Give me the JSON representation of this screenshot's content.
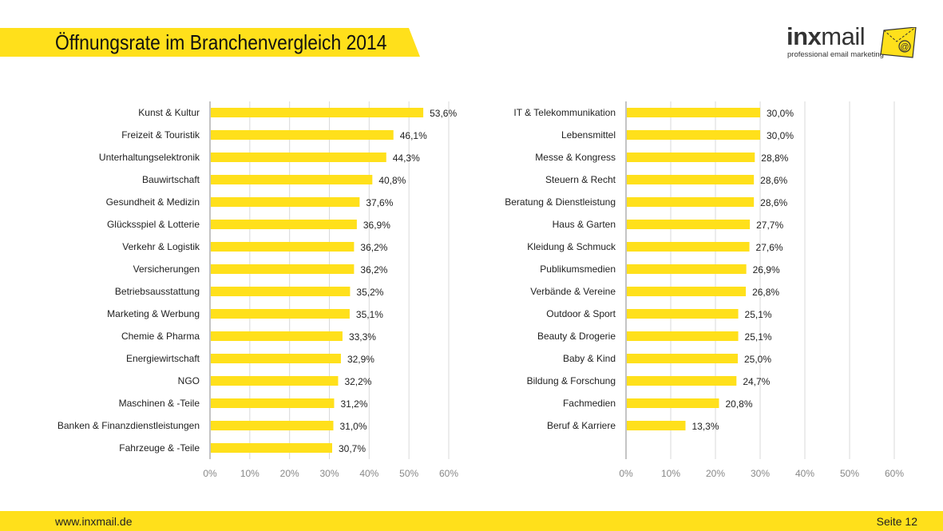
{
  "header": {
    "title": "Öffnungsrate im Branchenvergleich 2014",
    "logo_main_bold": "inx",
    "logo_main_rest": "mail",
    "logo_tagline": "professional email marketing"
  },
  "footer": {
    "url": "www.inxmail.de",
    "page": "Seite 12"
  },
  "colors": {
    "accent": "#FFE01B",
    "bar": "#FFE01B",
    "grid": "#D9D9D9",
    "axis": "#888888",
    "text": "#222222"
  },
  "chart_data": [
    {
      "type": "bar",
      "orientation": "horizontal",
      "categories": [
        "Kunst & Kultur",
        "Freizeit & Touristik",
        "Unterhaltungselektronik",
        "Bauwirtschaft",
        "Gesundheit & Medizin",
        "Glücksspiel & Lotterie",
        "Verkehr & Logistik",
        "Versicherungen",
        "Betriebsausstattung",
        "Marketing & Werbung",
        "Chemie & Pharma",
        "Energiewirtschaft",
        "NGO",
        "Maschinen & -Teile",
        "Banken & Finanzdienstleistungen",
        "Fahrzeuge & -Teile"
      ],
      "values": [
        53.6,
        46.1,
        44.3,
        40.8,
        37.6,
        36.9,
        36.2,
        36.2,
        35.2,
        35.1,
        33.3,
        32.9,
        32.2,
        31.2,
        31.0,
        30.7
      ],
      "value_labels": [
        "53,6%",
        "46,1%",
        "44,3%",
        "40,8%",
        "37,6%",
        "36,9%",
        "36,2%",
        "36,2%",
        "35,2%",
        "35,1%",
        "33,3%",
        "32,9%",
        "32,2%",
        "31,2%",
        "31,0%",
        "30,7%"
      ],
      "xlim": [
        0,
        60
      ],
      "ticks": [
        "0%",
        "10%",
        "20%",
        "30%",
        "40%",
        "50%",
        "60%"
      ],
      "grid": true
    },
    {
      "type": "bar",
      "orientation": "horizontal",
      "categories": [
        "IT & Telekommunikation",
        "Lebensmittel",
        "Messe & Kongress",
        "Steuern & Recht",
        "Beratung & Dienstleistung",
        "Haus & Garten",
        "Kleidung & Schmuck",
        "Publikumsmedien",
        "Verbände & Vereine",
        "Outdoor & Sport",
        "Beauty & Drogerie",
        "Baby & Kind",
        "Bildung & Forschung",
        "Fachmedien",
        "Beruf & Karriere"
      ],
      "values": [
        30.0,
        30.0,
        28.8,
        28.6,
        28.6,
        27.7,
        27.6,
        26.9,
        26.8,
        25.1,
        25.1,
        25.0,
        24.7,
        20.8,
        13.3
      ],
      "value_labels": [
        "30,0%",
        "30,0%",
        "28,8%",
        "28,6%",
        "28,6%",
        "27,7%",
        "27,6%",
        "26,9%",
        "26,8%",
        "25,1%",
        "25,1%",
        "25,0%",
        "24,7%",
        "20,8%",
        "13,3%"
      ],
      "xlim": [
        0,
        60
      ],
      "ticks": [
        "0%",
        "10%",
        "20%",
        "30%",
        "40%",
        "50%",
        "60%"
      ],
      "grid": true
    }
  ]
}
